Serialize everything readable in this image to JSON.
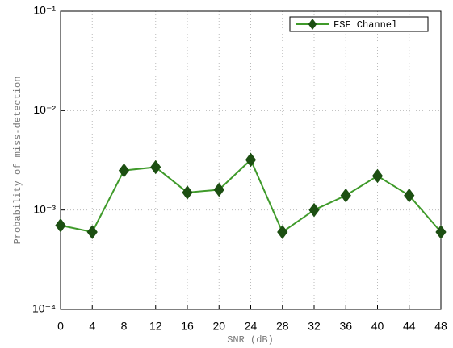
{
  "chart_data": {
    "type": "line",
    "xlabel": "SNR (dB)",
    "ylabel": "Probability of miss-detection",
    "x": [
      0,
      4,
      8,
      12,
      16,
      20,
      24,
      28,
      32,
      36,
      40,
      44,
      48
    ],
    "series": [
      {
        "name": "FSF Channel",
        "color": "#3f9a2a",
        "marker_color": "#1c4f12",
        "values": [
          0.0007,
          0.0006,
          0.0025,
          0.0027,
          0.0015,
          0.0016,
          0.0032,
          0.0006,
          0.001,
          0.0014,
          0.0022,
          0.0014,
          0.0006
        ]
      }
    ],
    "xlim": [
      0,
      48
    ],
    "xticks": [
      0,
      4,
      8,
      12,
      16,
      20,
      24,
      28,
      32,
      36,
      40,
      44,
      48
    ],
    "ylim": [
      0.0001,
      0.1
    ],
    "yticks": [
      {
        "value": 0.0001,
        "label": "10⁻⁴"
      },
      {
        "value": 0.001,
        "label": "10⁻³"
      },
      {
        "value": 0.01,
        "label": "10⁻²"
      },
      {
        "value": 0.1,
        "label": "10⁻¹"
      }
    ],
    "log_y": true,
    "grid": true,
    "legend": "upper right"
  }
}
